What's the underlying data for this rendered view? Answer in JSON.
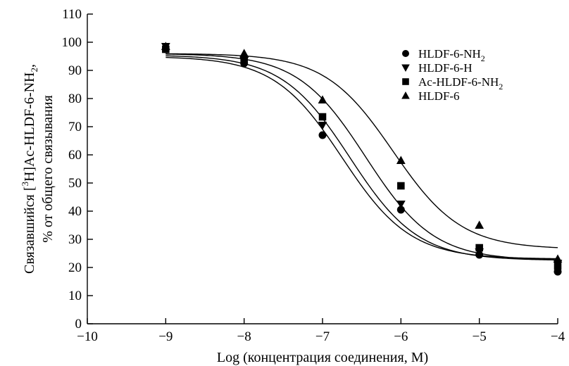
{
  "chart_data": {
    "type": "scatter",
    "title": "",
    "xlabel": "Log (концентрация соединения, М)",
    "ylabel_line1_prefix": "Связавшийся [",
    "ylabel_line1_sup": "3",
    "ylabel_line1_mid": "H]Ac-HLDF-6-NH",
    "ylabel_line1_sub": "2",
    "ylabel_line1_suffix": ",",
    "ylabel_line2": "% от общего связывания",
    "xlim": [
      -10,
      -4
    ],
    "ylim": [
      0,
      110
    ],
    "x_ticks": [
      -10,
      -9,
      -8,
      -7,
      -6,
      -5,
      -4
    ],
    "x_tick_labels": [
      "−10",
      "−9",
      "−8",
      "−7",
      "−6",
      "−5",
      "−4"
    ],
    "y_ticks": [
      0,
      10,
      20,
      30,
      40,
      50,
      60,
      70,
      80,
      90,
      100,
      110
    ],
    "y_tick_labels": [
      "0",
      "10",
      "20",
      "30",
      "40",
      "50",
      "60",
      "70",
      "80",
      "90",
      "100",
      "110"
    ],
    "grid": false,
    "legend_position": "top-right",
    "series": [
      {
        "legend_main": "HLDF-6-NH",
        "legend_sub": "2",
        "marker": "circle",
        "x": [
          -9,
          -8,
          -7,
          -6,
          -5,
          -4
        ],
        "y": [
          97.5,
          92.5,
          67,
          40.5,
          24.5,
          18.5
        ],
        "fit": {
          "top": 95,
          "bottom": 23,
          "logIC50": -6.75,
          "hill": 1
        }
      },
      {
        "legend_main": "HLDF-6-H",
        "legend_sub": "",
        "marker": "triangle-down",
        "x": [
          -9,
          -8,
          -7,
          -6,
          -5,
          -4
        ],
        "y": [
          98.5,
          93.5,
          70.5,
          42.5,
          25.5,
          21.5
        ],
        "fit": {
          "top": 95.5,
          "bottom": 22.5,
          "logIC50": -6.65,
          "hill": 1
        }
      },
      {
        "legend_main": "Ac-HLDF-6-NH",
        "legend_sub": "2",
        "marker": "square",
        "x": [
          -9,
          -8,
          -7,
          -6,
          -5,
          -4
        ],
        "y": [
          97.5,
          94,
          73.5,
          49,
          27,
          20.5
        ],
        "fit": {
          "top": 96,
          "bottom": 22.5,
          "logIC50": -6.45,
          "hill": 1
        }
      },
      {
        "legend_main": "HLDF-6",
        "legend_sub": "",
        "marker": "triangle-up",
        "x": [
          -9,
          -8,
          -7,
          -6,
          -5,
          -4
        ],
        "y": [
          98.5,
          96,
          79.5,
          58,
          35,
          23
        ],
        "fit": {
          "top": 96,
          "bottom": 26.5,
          "logIC50": -6.1,
          "hill": 1
        }
      }
    ]
  }
}
